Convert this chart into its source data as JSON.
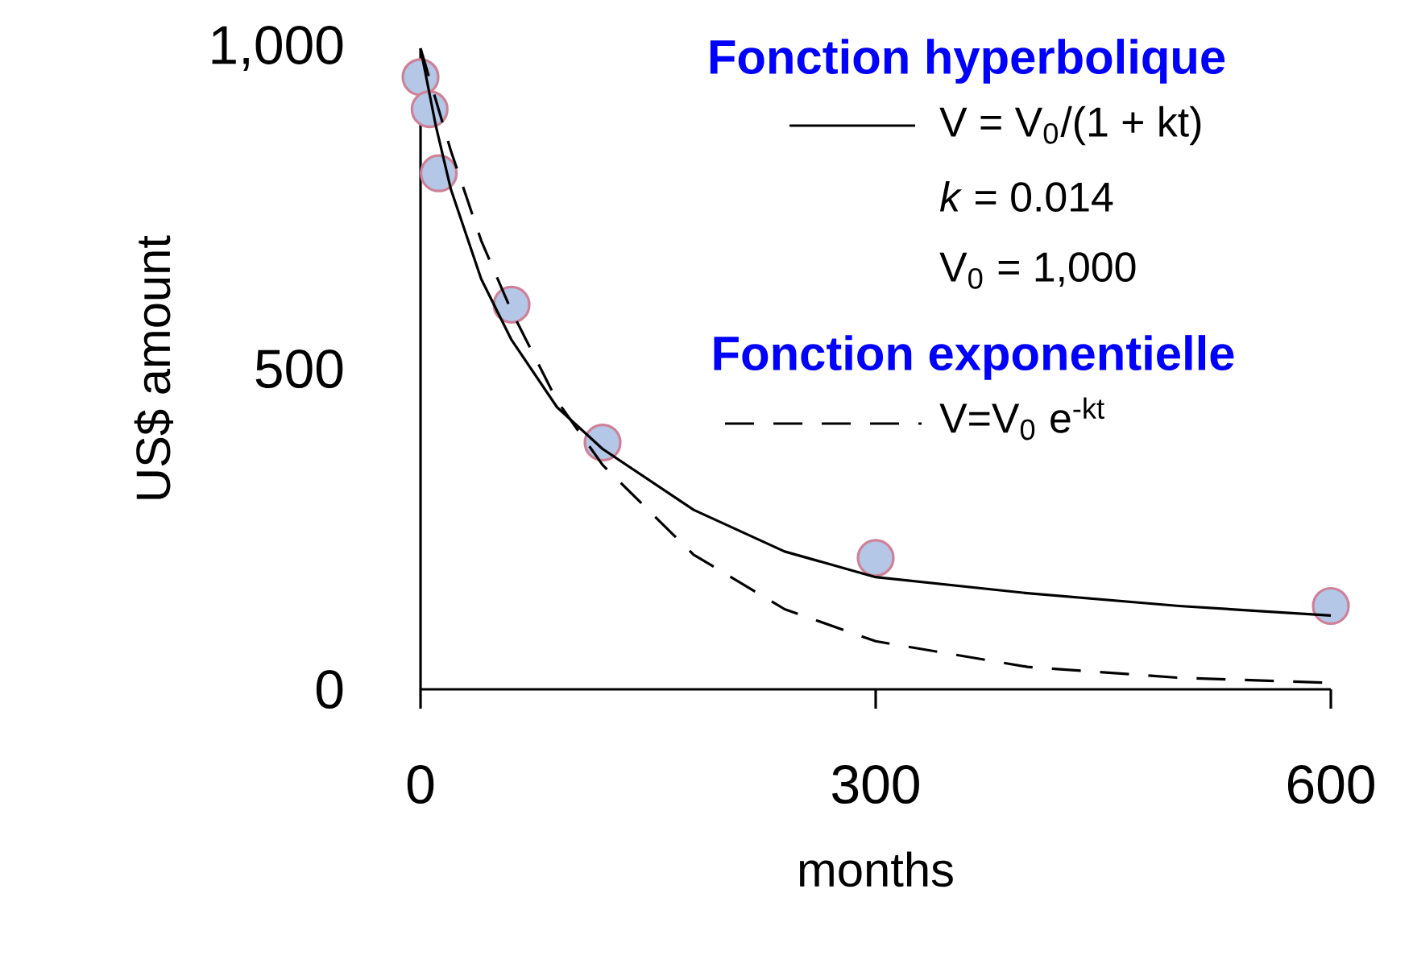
{
  "chart_data": {
    "type": "line",
    "xlabel": "months",
    "ylabel": "US$ amount",
    "xlim": [
      0,
      600
    ],
    "ylim": [
      0,
      1000
    ],
    "xticks": [
      0,
      300,
      600
    ],
    "yticks": [
      0,
      500,
      {
        "value": 1000,
        "label": "1,000"
      }
    ],
    "legend": "top right",
    "grid": false,
    "annotations": [
      "Fonction hyperbolique",
      "*k* = 0.014",
      "V$_{0}$ = 1,000",
      "Fonction exponentielle"
    ],
    "series": [
      {
        "name": "V = V$_{0}$/(1 + kt)",
        "line_style": "solid",
        "marker": "none",
        "color": "#000000",
        "x": [
          0,
          10,
          20,
          40,
          60,
          90,
          120,
          180,
          240,
          300,
          400,
          500,
          600
        ],
        "values": [
          1000,
          880,
          780,
          640,
          545,
          440,
          375,
          280,
          215,
          175,
          150,
          130,
          115
        ]
      },
      {
        "name": "V=V$_{0}$ e$^{-kt}$",
        "line_style": "dashed",
        "marker": "none",
        "color": "#000000",
        "x": [
          0,
          20,
          40,
          60,
          90,
          120,
          180,
          240,
          300,
          400,
          500,
          600
        ],
        "values": [
          1000,
          840,
          700,
          590,
          450,
          350,
          210,
          125,
          75,
          35,
          18,
          10
        ]
      },
      {
        "type": "scatter",
        "marker": "circle",
        "color": "#b4c7e7",
        "x": [
          0,
          6,
          12,
          60,
          120,
          300,
          600
        ],
        "values": [
          955,
          905,
          805,
          600,
          385,
          205,
          130
        ]
      }
    ]
  }
}
